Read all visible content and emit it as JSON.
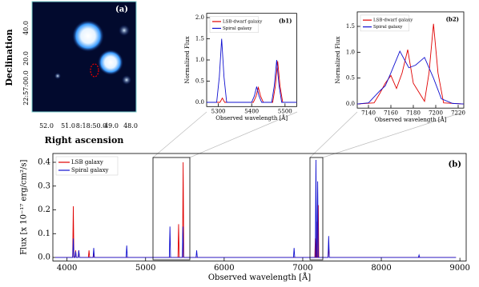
{
  "chart_data": [
    {
      "type": "image",
      "label": "(a)",
      "xlabel": "Right ascension",
      "ylabel": "Declination",
      "xtick_labels": [
        "52.0",
        "51.0",
        "8:18:50.0",
        "49.0",
        "48.0"
      ],
      "ytick_labels": [
        "40.0",
        "20.0",
        "22:57:00.0"
      ]
    },
    {
      "type": "line",
      "label": "(b1)",
      "xlabel": "Observed wavelength [Å]",
      "ylabel": "Normalized Flux",
      "xlim": [
        5265,
        5535
      ],
      "ylim": [
        -0.1,
        2.1
      ],
      "xticks": [
        5300,
        5400,
        5500
      ],
      "yticks": [
        {
          "value": 0,
          "label": "0.0"
        },
        {
          "value": 0.5,
          "label": "0.5"
        },
        {
          "value": 1,
          "label": "1.0"
        },
        {
          "value": 1.5,
          "label": "1.5"
        },
        {
          "value": 2,
          "label": "2.0"
        }
      ],
      "legend": "upper left",
      "series": [
        {
          "name": "LSB-dwarf galaxy",
          "color": "#e00000",
          "x": [
            5265,
            5305,
            5312,
            5319,
            5405,
            5413,
            5420,
            5427,
            5435,
            5463,
            5471,
            5478,
            5485,
            5493,
            5535
          ],
          "values": [
            0,
            0,
            0.1,
            0,
            0,
            0.14,
            0.35,
            0.14,
            0,
            0,
            0.38,
            0.97,
            0.38,
            0,
            0
          ]
        },
        {
          "name": "Spiral galaxy",
          "color": "#1010d0",
          "x": [
            5265,
            5295,
            5303,
            5310,
            5317,
            5325,
            5400,
            5408,
            5415,
            5422,
            5430,
            5460,
            5468,
            5475,
            5482,
            5490,
            5535
          ],
          "values": [
            0,
            0,
            0.6,
            1.5,
            0.6,
            0,
            0,
            0.15,
            0.37,
            0.15,
            0,
            0,
            0.4,
            1.0,
            0.4,
            0,
            0
          ]
        }
      ]
    },
    {
      "type": "line",
      "label": "(b2)",
      "xlabel": "Observed wavelength [Å]",
      "ylabel": "Normalized Flux",
      "xlim": [
        7130,
        7225
      ],
      "ylim": [
        -0.08,
        1.78
      ],
      "xticks": [
        7140,
        7160,
        7180,
        7200,
        7220
      ],
      "yticks": [
        {
          "value": 0,
          "label": "0.0"
        },
        {
          "value": 0.5,
          "label": "0.5"
        },
        {
          "value": 1,
          "label": "1.0"
        },
        {
          "value": 1.5,
          "label": "1.5"
        }
      ],
      "legend": "upper left",
      "series": [
        {
          "name": "LSB-dwarf galaxy",
          "color": "#e00000",
          "x": [
            7130,
            7145,
            7150,
            7155,
            7160,
            7165,
            7170,
            7175,
            7180,
            7190,
            7194,
            7198,
            7202,
            7207,
            7225
          ],
          "values": [
            0,
            0.02,
            0.2,
            0.4,
            0.55,
            0.3,
            0.6,
            1.05,
            0.4,
            0.05,
            0.6,
            1.55,
            0.6,
            0.02,
            0
          ]
        },
        {
          "name": "Spiral galaxy",
          "color": "#1010d0",
          "x": [
            7130,
            7140,
            7150,
            7155,
            7160,
            7168,
            7176,
            7182,
            7190,
            7198,
            7205,
            7215,
            7225
          ],
          "values": [
            0,
            0.02,
            0.25,
            0.35,
            0.6,
            1.02,
            0.7,
            0.75,
            0.9,
            0.5,
            0.1,
            0.01,
            0
          ]
        }
      ]
    },
    {
      "type": "line",
      "label": "(b)",
      "xlabel": "Observed wavelength [Å]",
      "ylabel": "Flux [x 10⁻¹⁷ erg/cm²/s]",
      "xlim": [
        3820,
        9080
      ],
      "ylim": [
        -0.015,
        0.437
      ],
      "xticks": [
        4000,
        5000,
        6000,
        7000,
        8000,
        9000
      ],
      "yticks": [
        {
          "value": 0,
          "label": "0.0"
        },
        {
          "value": 0.1,
          "label": "0.1"
        },
        {
          "value": 0.2,
          "label": "0.2"
        },
        {
          "value": 0.3,
          "label": "0.3"
        },
        {
          "value": 0.4,
          "label": "0.4"
        }
      ],
      "legend": "upper left",
      "series": [
        {
          "name": "LSB galaxy",
          "color": "#e00000",
          "x": [
            3850,
            4072,
            4080,
            4088,
            4102,
            4110,
            4118,
            4142,
            4150,
            4158,
            4272,
            4280,
            4288,
            4332,
            4340,
            4348,
            5412,
            5420,
            5428,
            5470,
            5478,
            5486,
            7154,
            7160,
            7166,
            7169,
            7175,
            7181,
            7192,
            7198,
            7204,
            7322,
            7330,
            7338,
            8950
          ],
          "values": [
            0,
            0,
            0.215,
            0,
            0,
            0.03,
            0,
            0,
            0.03,
            0,
            0,
            0.03,
            0,
            0,
            0.02,
            0,
            0,
            0.14,
            0,
            0,
            0.4,
            0,
            0,
            0.08,
            0,
            0,
            0.15,
            0,
            0,
            0.22,
            0,
            0,
            0.05,
            0,
            0
          ]
        },
        {
          "name": "Spiral galaxy",
          "color": "#1010d0",
          "x": [
            3850,
            4072,
            4080,
            4088,
            4102,
            4110,
            4118,
            4142,
            4150,
            4158,
            4332,
            4340,
            4348,
            4752,
            4760,
            4768,
            5302,
            5310,
            5318,
            5467,
            5475,
            5483,
            5642,
            5650,
            5658,
            6882,
            6890,
            6898,
            7160,
            7168,
            7176,
            7182,
            7190,
            7198,
            7322,
            7330,
            7338,
            8472,
            8480,
            8488,
            8950
          ],
          "values": [
            0,
            0,
            0.08,
            0,
            0,
            0.025,
            0,
            0,
            0.03,
            0,
            0,
            0.04,
            0,
            0,
            0.05,
            0,
            0,
            0.13,
            0,
            0,
            0.13,
            0,
            0,
            0.03,
            0,
            0,
            0.04,
            0,
            0,
            0.41,
            0,
            0,
            0.32,
            0,
            0,
            0.09,
            0,
            0,
            0.01,
            0,
            0
          ]
        }
      ]
    }
  ]
}
